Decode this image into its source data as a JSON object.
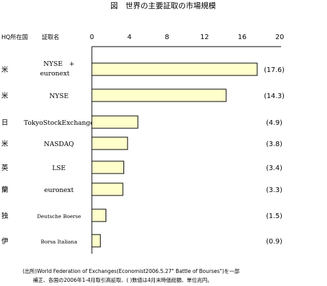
{
  "chart_data": {
    "type": "bar",
    "orientation": "horizontal",
    "title": "図　世界の主要証取の市場規模",
    "column_headers": {
      "hq": "HQ所在国",
      "exchange": "証取名"
    },
    "xlim": [
      0,
      20
    ],
    "xticks": [
      "0",
      "4",
      "8",
      "12",
      "16",
      "20"
    ],
    "bar_color": "#ffffcc",
    "rows": [
      {
        "country": "米",
        "exchange": "NYSE　+",
        "exchange_line2": "euronext",
        "value": 17.6,
        "value_label": "(17.6)"
      },
      {
        "country": "米",
        "exchange": "NYSE",
        "value": 14.3,
        "value_label": "(14.3)"
      },
      {
        "country": "日",
        "exchange": "TokyoStockExchange",
        "value": 4.9,
        "value_label": "(4.9)"
      },
      {
        "country": "米",
        "exchange": "NASDAQ",
        "value": 3.8,
        "value_label": "(3.8)"
      },
      {
        "country": "英",
        "exchange": "LSE",
        "value": 3.4,
        "value_label": "(3.4)"
      },
      {
        "country": "蘭",
        "exchange": "euronext",
        "value": 3.3,
        "value_label": "(3.3)"
      },
      {
        "country": "独",
        "exchange": "Deutsche Boerse",
        "value": 1.5,
        "value_label": "(1.5)"
      },
      {
        "country": "伊",
        "exchange": "Borsa Italiana",
        "value": 0.9,
        "value_label": "(0.9)"
      }
    ],
    "source_line1": "(出所)World Federation of Exchanges(Economist2006.5.27\" Battle of Bourses\")を一部",
    "source_line2": "補正、各国の2006年1-4月取引高証取、( )数値は4月末時価総額、単位兆円。"
  }
}
